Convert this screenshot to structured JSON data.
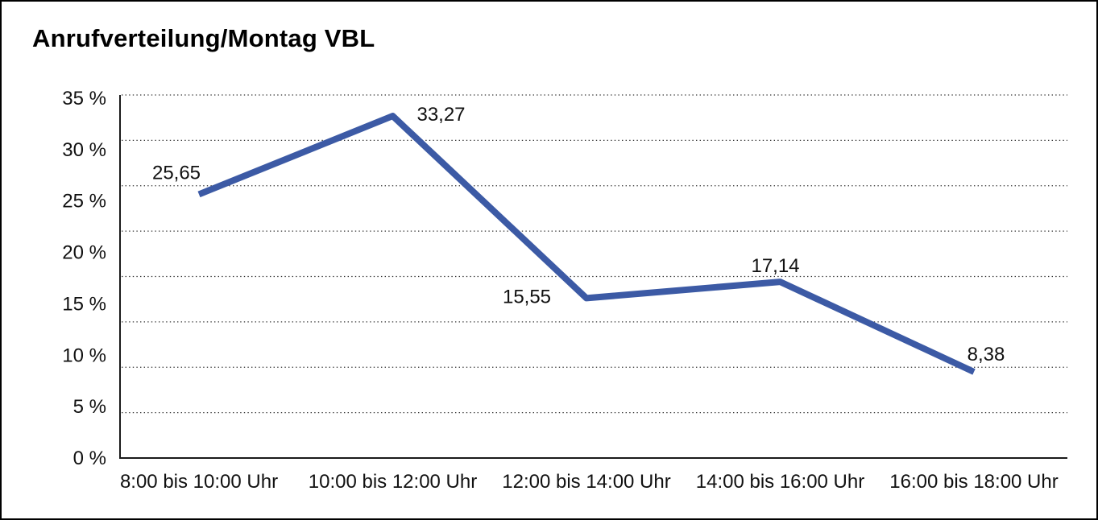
{
  "window": {
    "background": "#ffffff",
    "frame_color": "#000000"
  },
  "chart_data": {
    "type": "line",
    "title": "Anrufverteilung/Montag VBL",
    "categories": [
      "8:00 bis 10:00 Uhr",
      "10:00 bis 12:00 Uhr",
      "12:00 bis 14:00 Uhr",
      "14:00 bis 16:00 Uhr",
      "16:00 bis 18:00 Uhr"
    ],
    "series": [
      {
        "name": "Anrufverteilung",
        "values": [
          25.65,
          33.27,
          15.55,
          17.14,
          8.38
        ]
      }
    ],
    "point_labels": [
      "25,65",
      "33,27",
      "15,55",
      "17,14",
      "8,38"
    ],
    "y_tick_labels": [
      "35 %",
      "30 %",
      "25 %",
      "20 %",
      "15 %",
      "10 %",
      "5 %",
      "0 %"
    ],
    "ylim": [
      0,
      35
    ],
    "y_tick_step": 5,
    "xlabel": "",
    "ylabel": "",
    "grid": "horizontal-dotted",
    "legend": "none",
    "line_color": "#3c5aa5",
    "grid_color": "#333333",
    "axis_color": "#1a1a1a",
    "text_color": "#111111"
  }
}
